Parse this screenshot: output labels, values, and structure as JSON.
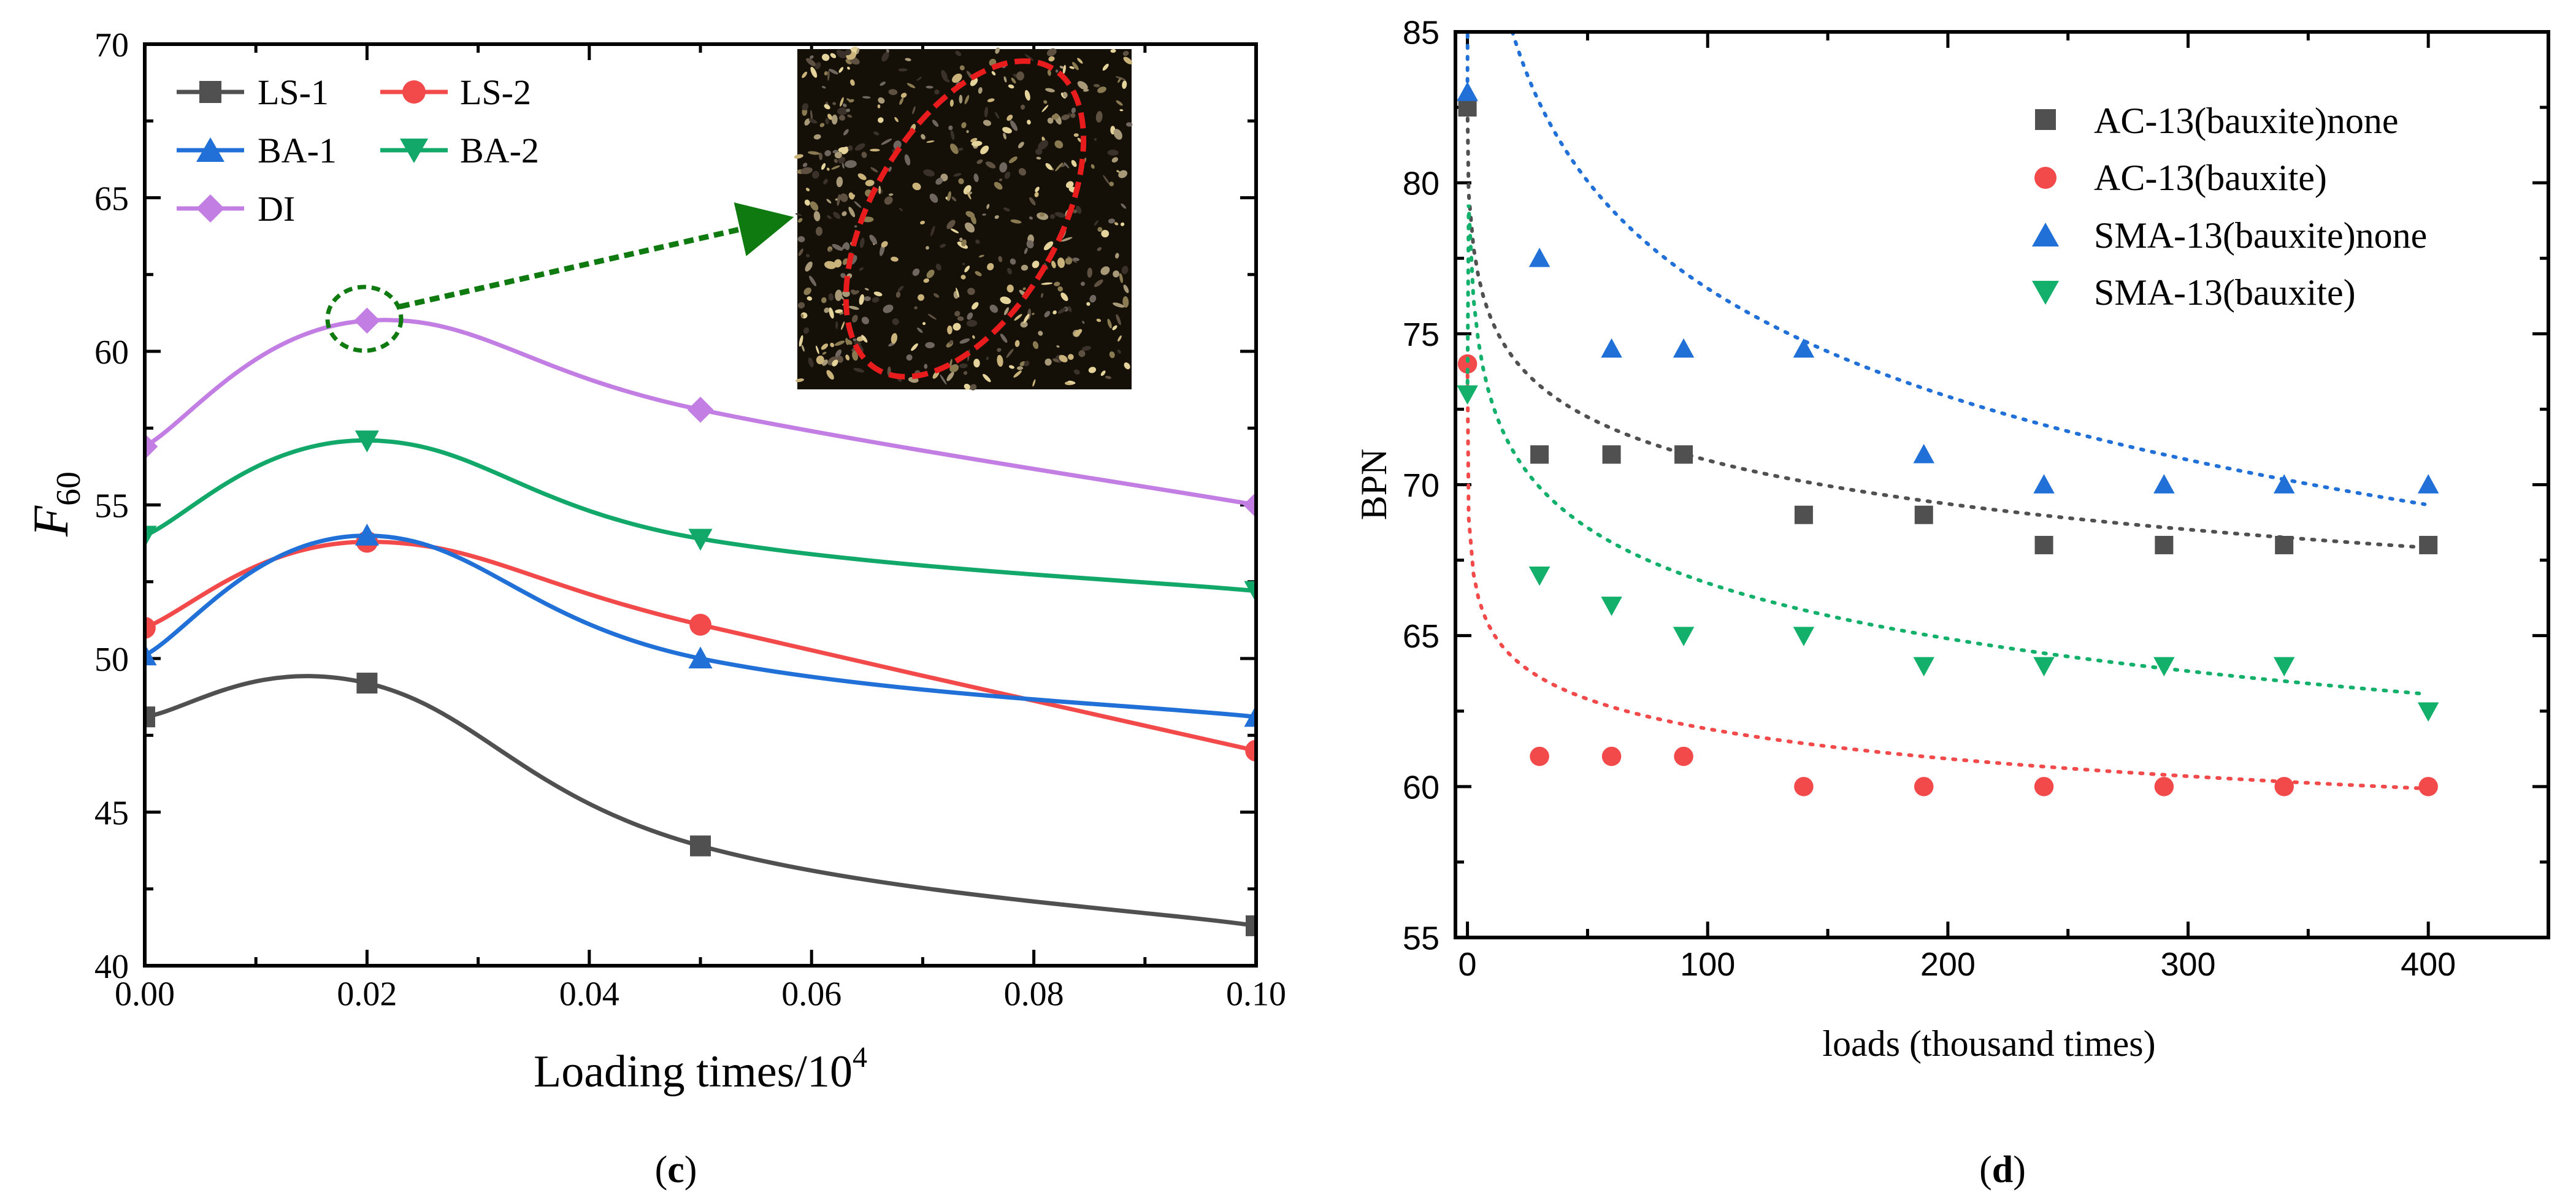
{
  "chart_data": [
    {
      "type": "line",
      "panel_label": "c",
      "title": "",
      "xlabel": "Loading times/10",
      "xlabel_exp": "4",
      "ylabel_main": "F",
      "ylabel_sub": "60",
      "xlim": [
        0.0,
        0.1
      ],
      "ylim": [
        40,
        70
      ],
      "xticks": [
        0.0,
        0.02,
        0.04,
        0.06,
        0.08,
        0.1
      ],
      "xtick_labels": [
        "0.00",
        "0.02",
        "0.04",
        "0.06",
        "0.08",
        "0.10"
      ],
      "yticks": [
        40,
        45,
        50,
        55,
        60,
        65,
        70
      ],
      "ytick_labels": [
        "40",
        "45",
        "50",
        "55",
        "60",
        "65",
        "70"
      ],
      "x": [
        0.0,
        0.02,
        0.05,
        0.1
      ],
      "series": [
        {
          "name": "LS-1",
          "marker": "square",
          "color": "#505050",
          "values": [
            48.1,
            49.2,
            43.9,
            41.3
          ]
        },
        {
          "name": "LS-2",
          "marker": "circle",
          "color": "#f24a4a",
          "values": [
            51.0,
            53.8,
            51.1,
            47.0
          ]
        },
        {
          "name": "BA-1",
          "marker": "triangle-up",
          "color": "#2070d8",
          "values": [
            50.1,
            54.0,
            50.0,
            48.1
          ]
        },
        {
          "name": "BA-2",
          "marker": "triangle-down",
          "color": "#12a86a",
          "values": [
            54.0,
            57.1,
            53.9,
            52.2
          ]
        },
        {
          "name": "DI",
          "marker": "diamond",
          "color": "#c37ee3",
          "values": [
            56.9,
            61.0,
            58.1,
            55.0
          ]
        }
      ],
      "annotation": {
        "highlight_series": "DI",
        "highlight_x": 0.02,
        "highlight_y": 61.0,
        "circle_color": "#0f7a0f",
        "arrow_color": "#0f7a0f",
        "inset_outline_color": "#e81c1c"
      },
      "legend": "top-left, two columns"
    },
    {
      "type": "scatter",
      "panel_label": "d",
      "title": "",
      "xlabel": "loads (thousand times)",
      "ylabel": "BPN",
      "xlim": [
        -5,
        450
      ],
      "ylim": [
        55,
        85
      ],
      "xticks": [
        0,
        100,
        200,
        300,
        400
      ],
      "xtick_labels": [
        "0",
        "100",
        "200",
        "300",
        "400"
      ],
      "yticks": [
        55,
        60,
        65,
        70,
        75,
        80,
        85
      ],
      "ytick_labels": [
        "55",
        "60",
        "65",
        "70",
        "75",
        "80",
        "85"
      ],
      "x": [
        0,
        30,
        60,
        90,
        140,
        190,
        240,
        290,
        340,
        400
      ],
      "series": [
        {
          "name": "AC-13(bauxite)none",
          "marker": "square",
          "color": "#505050",
          "values": [
            82.5,
            71,
            71,
            71,
            69,
            69,
            68,
            68,
            68,
            68
          ],
          "fit": {
            "a": 80.5,
            "b": -2.1,
            "c": 1
          }
        },
        {
          "name": "AC-13(bauxite)",
          "marker": "circle",
          "color": "#f24a4a",
          "values": [
            74,
            61,
            61,
            61,
            60,
            60,
            60,
            60,
            60,
            60
          ],
          "fit": {
            "a": 68.5,
            "b": -1.43,
            "c": 0.25
          }
        },
        {
          "name": "SMA-13(bauxite)none",
          "marker": "triangle-up",
          "color": "#2070d8",
          "values": [
            83,
            77.5,
            74.5,
            74.5,
            74.5,
            71,
            70,
            70,
            70,
            70
          ],
          "fit": {
            "a": 100.5,
            "b": -5.2,
            "c": 1
          }
        },
        {
          "name": "SMA-13(bauxite)",
          "marker": "triangle-down",
          "color": "#12b06a",
          "values": [
            73,
            67,
            66,
            65,
            65,
            64,
            64,
            64,
            64,
            62.5
          ],
          "fit": {
            "a": 79.0,
            "b": -2.66,
            "c": 0.4
          }
        }
      ],
      "legend": "top-right"
    }
  ]
}
